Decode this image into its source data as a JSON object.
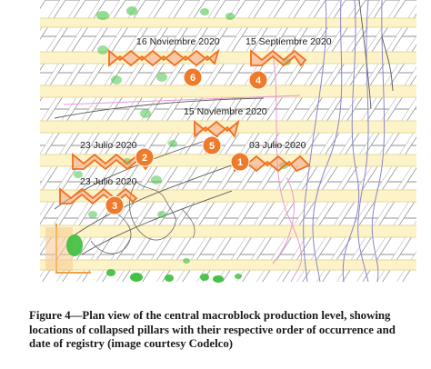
{
  "figure": {
    "events": [
      {
        "order": "6",
        "date": "16 Noviembre 2020"
      },
      {
        "order": "4",
        "date": "15 Septiembre 2020"
      },
      {
        "order": "5",
        "date": "15 Noviembre 2020"
      },
      {
        "order": "2",
        "date": "23 Julio 2020"
      },
      {
        "order": "1",
        "date": "03 Julio 2020"
      },
      {
        "order": "3",
        "date": "23 Julio 2020"
      }
    ],
    "colors": {
      "drift": "#fdf3c9",
      "drift_edge": "#e6d99a",
      "pillar_outline": "#9a9a9a",
      "collapse_marker": "#f07020",
      "order_circle": "#ee7a2a",
      "green_spot": "#3bbf3b",
      "purple_line": "#8a87c8",
      "pink_line": "#e79ad1",
      "dark_line": "#5a5a5a"
    }
  },
  "caption": {
    "text": "Figure 4—Plan view of the central macroblock production level, showing locations of collapsed pillars with their respective order of occurrence and date of registry (image courtesy Codelco)"
  }
}
